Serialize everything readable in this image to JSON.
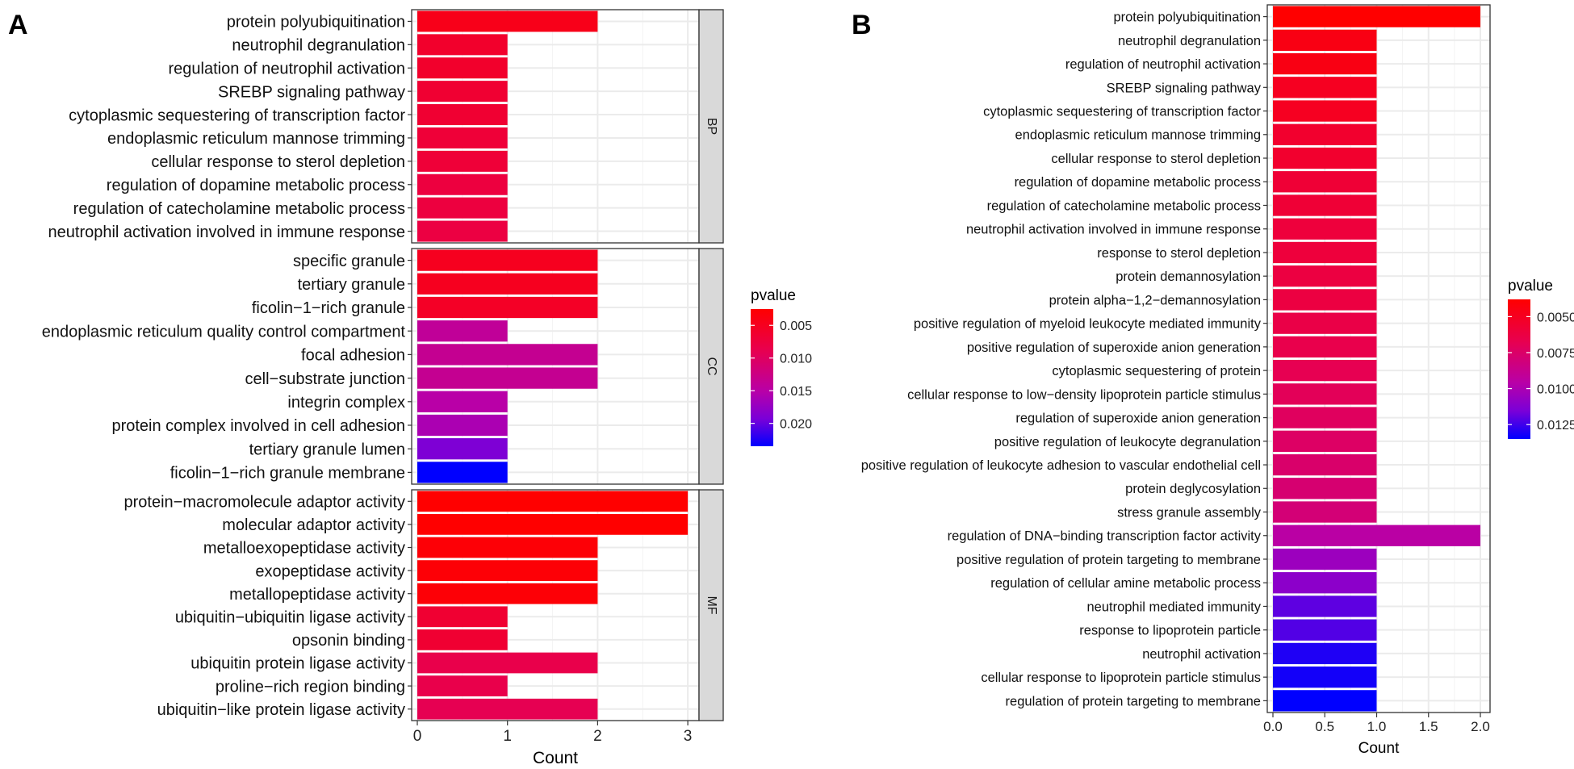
{
  "chart_data": [
    {
      "panel_label": "A",
      "type": "bar",
      "orientation": "horizontal",
      "xlabel": "Count",
      "xlim": [
        0,
        3.2
      ],
      "xticks": [
        0,
        1,
        2,
        3
      ],
      "xtick_labels": [
        "0",
        "1",
        "2",
        "3"
      ],
      "grid": true,
      "legend": {
        "title": "pvalue",
        "placement": "right",
        "limits": [
          0.0025,
          0.0235
        ],
        "ticks": [
          0.005,
          0.01,
          0.015,
          0.02
        ],
        "tick_labels": [
          "0.005",
          "0.010",
          "0.015",
          "0.020"
        ]
      },
      "facets": [
        {
          "name": "BP",
          "categories": [
            "protein polyubiquitination",
            "neutrophil degranulation",
            "regulation of neutrophil activation",
            "SREBP signaling pathway",
            "cytoplasmic sequestering of transcription factor",
            "endoplasmic reticulum mannose trimming",
            "cellular response to sterol depletion",
            "regulation of dopamine metabolic process",
            "regulation of catecholamine metabolic process",
            "neutrophil activation involved in immune response"
          ],
          "values": [
            2,
            1,
            1,
            1,
            1,
            1,
            1,
            1,
            1,
            1
          ],
          "pvalues": [
            0.0045,
            0.006,
            0.006,
            0.0065,
            0.0065,
            0.007,
            0.007,
            0.0075,
            0.0075,
            0.0078
          ]
        },
        {
          "name": "CC",
          "categories": [
            "specific granule",
            "tertiary granule",
            "ficolin−1−rich granule",
            "endoplasmic reticulum quality control compartment",
            "focal adhesion",
            "cell−substrate junction",
            "integrin complex",
            "protein complex involved in cell adhesion",
            "tertiary granule lumen",
            "ficolin−1−rich granule membrane"
          ],
          "values": [
            2,
            2,
            2,
            1,
            2,
            2,
            1,
            1,
            1,
            1
          ],
          "pvalues": [
            0.005,
            0.005,
            0.0055,
            0.014,
            0.0135,
            0.0135,
            0.015,
            0.016,
            0.019,
            0.0235
          ]
        },
        {
          "name": "MF",
          "categories": [
            "protein−macromolecule adaptor activity",
            "molecular adaptor activity",
            "metalloexopeptidase activity",
            "exopeptidase activity",
            "metallopeptidase activity",
            "ubiquitin−ubiquitin ligase activity",
            "opsonin binding",
            "ubiquitin protein ligase activity",
            "proline−rich region binding",
            "ubiquitin−like protein ligase activity"
          ],
          "values": [
            3,
            3,
            2,
            2,
            2,
            1,
            1,
            2,
            1,
            2
          ],
          "pvalues": [
            0.0025,
            0.0025,
            0.003,
            0.003,
            0.003,
            0.0065,
            0.0065,
            0.0085,
            0.0085,
            0.009
          ]
        }
      ]
    },
    {
      "panel_label": "B",
      "type": "bar",
      "orientation": "horizontal",
      "xlabel": "Count",
      "xlim": [
        0,
        2.05
      ],
      "xticks": [
        0,
        0.5,
        1,
        1.5,
        2
      ],
      "xtick_labels": [
        "0.0",
        "0.5",
        "1.0",
        "1.5",
        "2.0"
      ],
      "grid": true,
      "legend": {
        "title": "pvalue",
        "placement": "right",
        "limits": [
          0.0038,
          0.0135
        ],
        "ticks": [
          0.005,
          0.0075,
          0.01,
          0.0125
        ],
        "tick_labels": [
          "0.0050",
          "0.0075",
          "0.0100",
          "0.0125"
        ]
      },
      "categories": [
        "protein polyubiquitination",
        "neutrophil degranulation",
        "regulation of neutrophil activation",
        "SREBP signaling pathway",
        "cytoplasmic sequestering of transcription factor",
        "endoplasmic reticulum mannose trimming",
        "cellular response to sterol depletion",
        "regulation of dopamine metabolic process",
        "regulation of catecholamine metabolic process",
        "neutrophil activation involved in immune response",
        "response to sterol depletion",
        "protein demannosylation",
        "protein alpha−1,2−demannosylation",
        "positive regulation of myeloid leukocyte mediated immunity",
        "positive regulation of superoxide anion generation",
        "cytoplasmic sequestering of protein",
        "cellular response to low−density lipoprotein particle stimulus",
        "regulation of superoxide anion generation",
        "positive regulation of leukocyte degranulation",
        "positive regulation of leukocyte adhesion to vascular endothelial cell",
        "protein deglycosylation",
        "stress granule assembly",
        "regulation of DNA−binding transcription factor activity",
        "positive regulation of protein targeting to membrane",
        "regulation of cellular amine metabolic process",
        "neutrophil mediated immunity",
        "response to lipoprotein particle",
        "neutrophil activation",
        "cellular response to lipoprotein particle stimulus",
        "regulation of protein targeting to membrane"
      ],
      "values": [
        2,
        1,
        1,
        1,
        1,
        1,
        1,
        1,
        1,
        1,
        1,
        1,
        1,
        1,
        1,
        1,
        1,
        1,
        1,
        1,
        1,
        1,
        2,
        1,
        1,
        1,
        1,
        1,
        1,
        1
      ],
      "pvalues": [
        0.0038,
        0.0045,
        0.0045,
        0.005,
        0.005,
        0.0055,
        0.0055,
        0.0058,
        0.0058,
        0.006,
        0.006,
        0.0062,
        0.0062,
        0.0064,
        0.0066,
        0.0068,
        0.007,
        0.0072,
        0.0074,
        0.0076,
        0.0078,
        0.008,
        0.0095,
        0.0105,
        0.011,
        0.012,
        0.0122,
        0.013,
        0.0132,
        0.0135
      ]
    }
  ]
}
